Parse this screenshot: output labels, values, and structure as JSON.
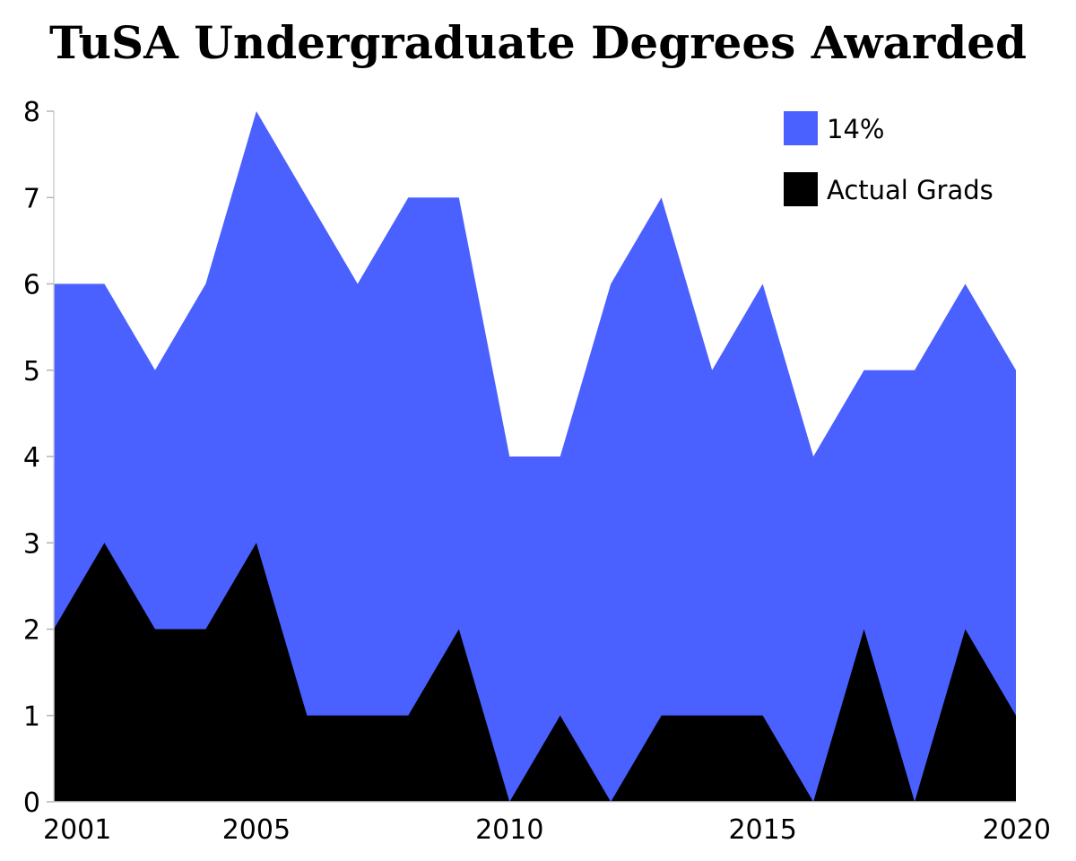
{
  "chart_data": {
    "type": "area",
    "title": "TuSA Undergraduate Degrees Awarded",
    "xlabel": "",
    "ylabel": "",
    "x": [
      2001,
      2002,
      2003,
      2004,
      2005,
      2006,
      2007,
      2008,
      2009,
      2010,
      2011,
      2012,
      2013,
      2014,
      2015,
      2016,
      2017,
      2018,
      2019,
      2020
    ],
    "x_tick_labels": [
      "2001",
      "2005",
      "2010",
      "2015",
      "2020"
    ],
    "y_tick_labels": [
      "0",
      "1",
      "2",
      "3",
      "4",
      "5",
      "6",
      "7",
      "8"
    ],
    "xlim": [
      2001,
      2020
    ],
    "ylim": [
      0,
      8
    ],
    "grid": false,
    "legend_position": "top-right",
    "overlapping": true,
    "series": [
      {
        "name": "14%",
        "color": "#4a60ff",
        "values": [
          6,
          6,
          5,
          6,
          8,
          7,
          6,
          7,
          7,
          4,
          4,
          6,
          7,
          5,
          6,
          4,
          5,
          5,
          6,
          5
        ]
      },
      {
        "name": "Actual Grads",
        "color": "#000000",
        "values": [
          2,
          3,
          2,
          2,
          3,
          1,
          1,
          1,
          2,
          0,
          1,
          0,
          1,
          1,
          1,
          0,
          2,
          0,
          2,
          1
        ]
      }
    ]
  }
}
